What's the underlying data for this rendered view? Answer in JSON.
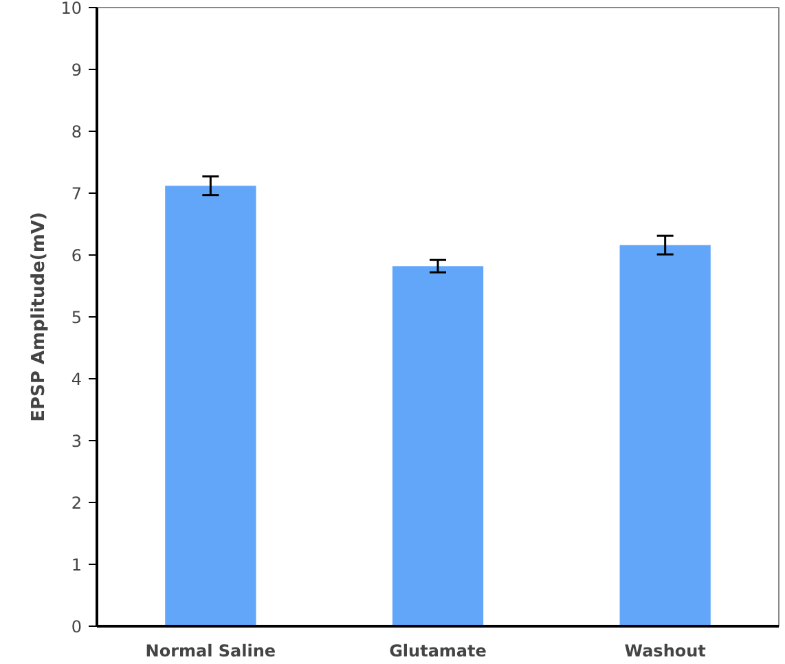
{
  "chart_data": {
    "type": "bar",
    "ylabel": "EPSP Amplitude(mV)",
    "categories": [
      "Normal Saline",
      "Glutamate",
      "Washout"
    ],
    "values": [
      7.12,
      5.82,
      6.16
    ],
    "errors": [
      0.15,
      0.1,
      0.15
    ],
    "color": "#62a6fa",
    "ylim": [
      0,
      10
    ],
    "yticks": [
      0,
      1,
      2,
      3,
      4,
      5,
      6,
      7,
      8,
      9,
      10
    ],
    "grid": false
  }
}
